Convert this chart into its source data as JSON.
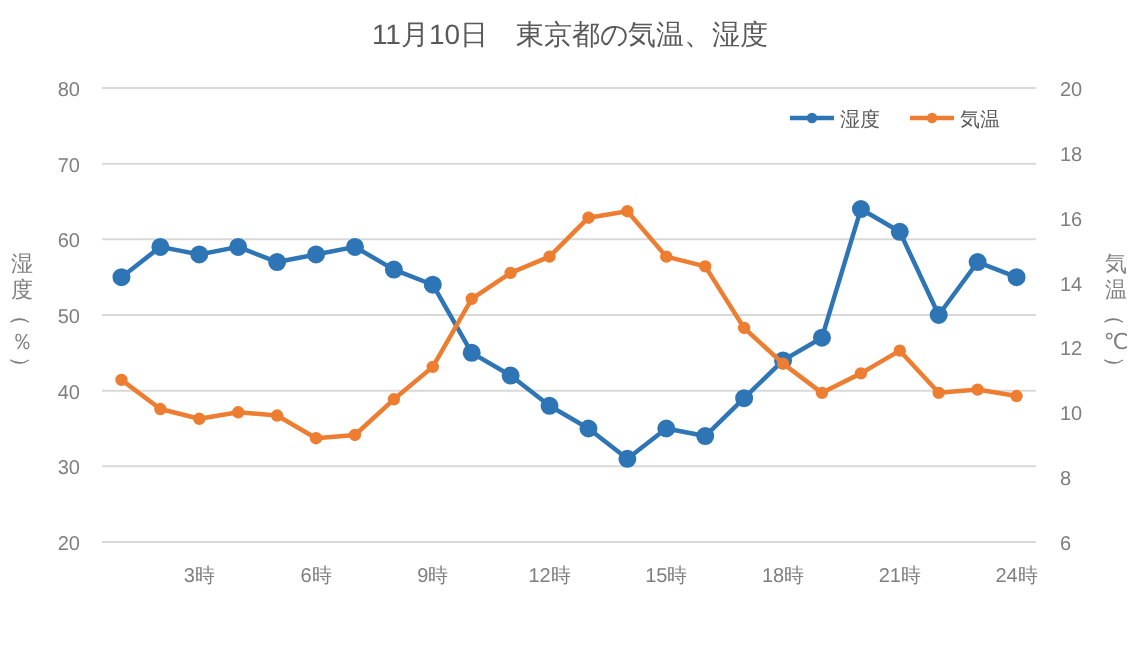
{
  "chart_data": {
    "type": "line",
    "title": "11月10日　東京都の気温、湿度",
    "ylabel": "湿度（％）",
    "y2label": "気温（℃）",
    "categories": [
      null,
      null,
      "3時",
      null,
      null,
      "6時",
      null,
      null,
      "9時",
      null,
      null,
      "12時",
      null,
      null,
      "15時",
      null,
      null,
      "18時",
      null,
      null,
      "21時",
      null,
      null,
      "24時"
    ],
    "series": [
      {
        "name": "湿度",
        "color": "#2e75b6",
        "values": [
          55,
          59,
          58,
          59,
          57,
          58,
          59,
          56,
          54,
          45,
          42,
          38,
          35,
          31,
          35,
          34,
          39,
          44,
          47,
          64,
          61,
          50,
          57,
          55
        ]
      },
      {
        "name": "気温",
        "color": "#ed7d31",
        "axis": "y2",
        "values": [
          11.0,
          10.1,
          9.8,
          10.0,
          9.9,
          9.2,
          9.3,
          10.4,
          11.4,
          13.5,
          14.3,
          14.8,
          16.0,
          16.2,
          14.8,
          14.5,
          12.6,
          11.5,
          10.6,
          11.2,
          11.9,
          10.6,
          10.7,
          10.5
        ]
      }
    ],
    "ylim": [
      20,
      80
    ],
    "yticks": [
      20,
      30,
      40,
      50,
      60,
      70,
      80
    ],
    "y2lim": [
      6,
      20
    ],
    "y2ticks": [
      6,
      8,
      10,
      12,
      14,
      16,
      18,
      20
    ],
    "grid": "y",
    "legend": "top right",
    "marker": "circle",
    "line_style": "solid"
  }
}
